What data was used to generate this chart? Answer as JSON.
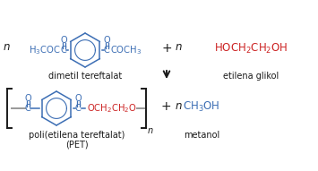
{
  "bg_color": "#ffffff",
  "blue": "#3c6eb4",
  "red": "#cc2222",
  "black": "#1a1a1a",
  "gray": "#999999",
  "label_dimetil": "dimetil tereftalat",
  "label_etilena": "etilena glikol",
  "label_poli1": "poli(etilena tereftalat)",
  "label_poli2": "(PET)",
  "label_metanol": "metanol",
  "fig_w": 3.55,
  "fig_h": 1.91,
  "dpi": 100
}
